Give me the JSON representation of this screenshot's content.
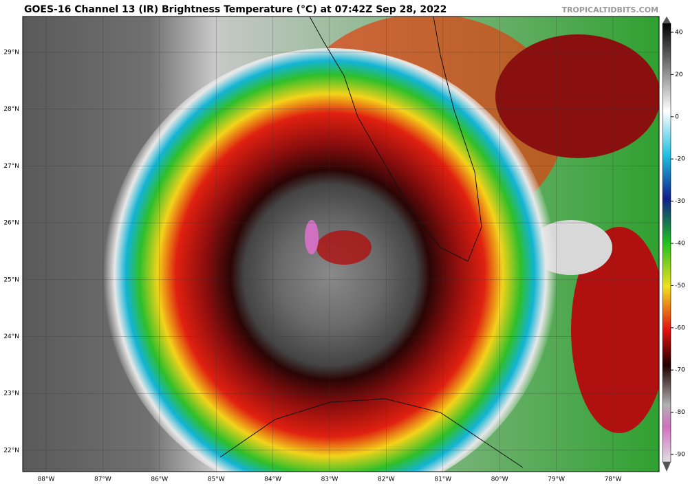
{
  "header": {
    "title": "GOES-16 Channel 13 (IR) Brightness Temperature (°C) at 07:42Z Sep 28, 2022",
    "credit": "TROPICALTIDBITS.COM"
  },
  "map": {
    "lat_labels": [
      "29°N",
      "28°N",
      "27°N",
      "26°N",
      "25°N",
      "24°N",
      "23°N",
      "22°N"
    ],
    "lon_labels": [
      "88°W",
      "87°W",
      "86°W",
      "85°W",
      "84°W",
      "83°W",
      "82°W",
      "81°W",
      "80°W",
      "79°W",
      "78°W"
    ]
  },
  "colorbar": {
    "ticks": [
      40,
      20,
      0,
      -20,
      -30,
      -40,
      -50,
      -60,
      -70,
      -80,
      -90
    ]
  }
}
